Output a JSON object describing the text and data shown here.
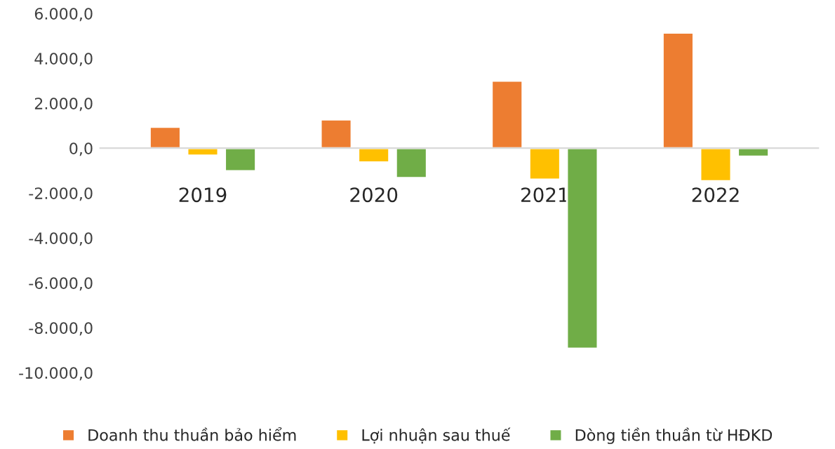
{
  "chart_data": {
    "type": "bar",
    "categories": [
      "2019",
      "2020",
      "2021",
      "2022"
    ],
    "series": [
      {
        "name": "Doanh thu thuần bảo hiểm",
        "color": "#ed7d31",
        "values": [
          950,
          1280,
          3000,
          5140
        ]
      },
      {
        "name": "Lợi nhuận sau thuế",
        "color": "#ffc000",
        "values": [
          -330,
          -630,
          -1400,
          -1470
        ]
      },
      {
        "name": "Dòng tiền thuần từ HĐKD",
        "color": "#70ad47",
        "values": [
          -1020,
          -1330,
          -8930,
          -370
        ]
      }
    ],
    "ylim": [
      -10000,
      6000
    ],
    "yticks": [
      {
        "value": -10000,
        "label": "-10.000,0"
      },
      {
        "value": -8000,
        "label": "-8.000,0"
      },
      {
        "value": -6000,
        "label": "-6.000,0"
      },
      {
        "value": -4000,
        "label": "-4.000,0"
      },
      {
        "value": -2000,
        "label": "-2.000,0"
      },
      {
        "value": 0,
        "label": "0,0"
      },
      {
        "value": 2000,
        "label": "2.000,0"
      },
      {
        "value": 4000,
        "label": "4.000,0"
      },
      {
        "value": 6000,
        "label": "6.000,0"
      }
    ],
    "grid": false,
    "legend": "bottom"
  }
}
